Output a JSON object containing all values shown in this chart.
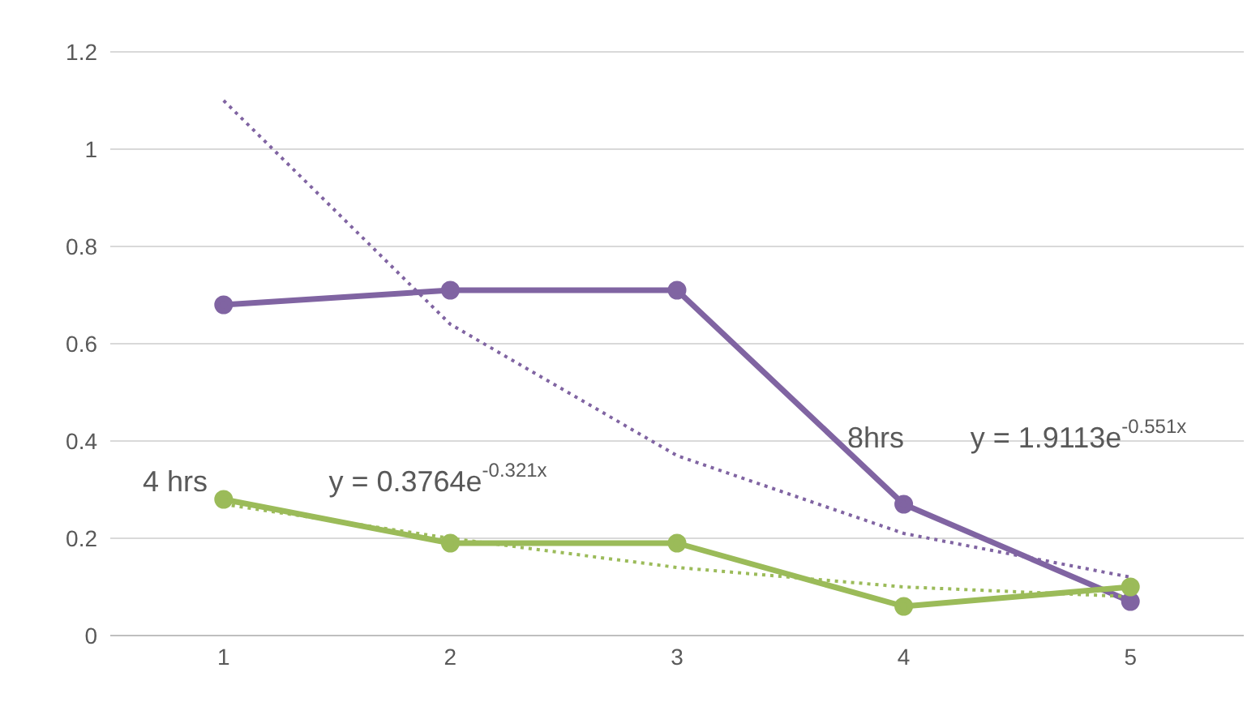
{
  "chart_data": {
    "type": "line",
    "xlim": [
      0.5,
      5.5
    ],
    "xticks": [
      1,
      2,
      3,
      4,
      5
    ],
    "ylim": [
      0,
      1.2
    ],
    "yticks": [
      0,
      0.2,
      0.4,
      0.6,
      0.8,
      1,
      1.2
    ],
    "grid": "y",
    "legend": false,
    "series": [
      {
        "name": "8hrs",
        "color": "#8064a2",
        "x": [
          1,
          2,
          3,
          4,
          5
        ],
        "values": [
          0.68,
          0.71,
          0.71,
          0.27,
          0.07
        ],
        "marker": "circle",
        "line_style": "solid"
      },
      {
        "name": "4 hrs",
        "color": "#9bbb59",
        "x": [
          1,
          2,
          3,
          4,
          5
        ],
        "values": [
          0.28,
          0.19,
          0.19,
          0.06,
          0.1
        ],
        "marker": "circle",
        "line_style": "solid"
      },
      {
        "color": "#8064a2",
        "x": [
          1,
          2,
          3,
          4,
          5
        ],
        "values": [
          1.1,
          0.64,
          0.37,
          0.21,
          0.12
        ],
        "marker": "none",
        "line_style": "dotted"
      },
      {
        "color": "#9bbb59",
        "x": [
          1,
          2,
          3,
          4,
          5
        ],
        "values": [
          0.27,
          0.2,
          0.14,
          0.1,
          0.08
        ],
        "marker": "none",
        "line_style": "dotted"
      }
    ],
    "annotations": [
      "y = 1.9113e$^{-0.551x}$",
      "y = 0.3764e$^{-0.321x}$"
    ]
  }
}
